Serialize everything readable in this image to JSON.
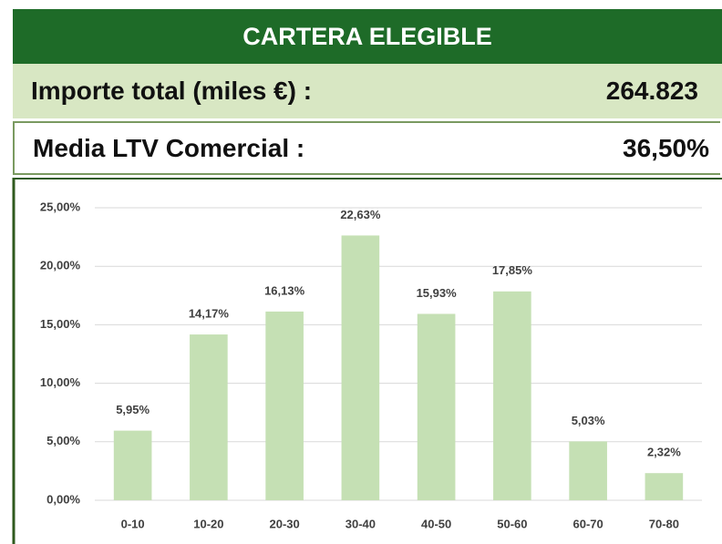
{
  "header": {
    "title": "CARTERA ELEGIBLE",
    "importe_label": "Importe total (miles €) :",
    "importe_value": "264.823",
    "ltv_label": "Media LTV Comercial :",
    "ltv_value": "36,50%"
  },
  "chart_data": {
    "type": "bar",
    "categories": [
      "0-10",
      "10-20",
      "20-30",
      "30-40",
      "40-50",
      "50-60",
      "60-70",
      "70-80"
    ],
    "values": [
      5.95,
      14.17,
      16.13,
      22.63,
      15.93,
      17.85,
      5.03,
      2.32
    ],
    "value_labels": [
      "5,95%",
      "14,17%",
      "16,13%",
      "22,63%",
      "15,93%",
      "17,85%",
      "5,03%",
      "2,32%"
    ],
    "color": "#c5e0b4",
    "ylim": [
      0,
      25
    ],
    "yticks": [
      {
        "value": 0,
        "label": "0,00%"
      },
      {
        "value": 5,
        "label": "5,00%"
      },
      {
        "value": 10,
        "label": "10,00%"
      },
      {
        "value": 15,
        "label": "15,00%"
      },
      {
        "value": 20,
        "label": "20,00%"
      },
      {
        "value": 25,
        "label": "25,00%"
      }
    ],
    "grid": true
  }
}
